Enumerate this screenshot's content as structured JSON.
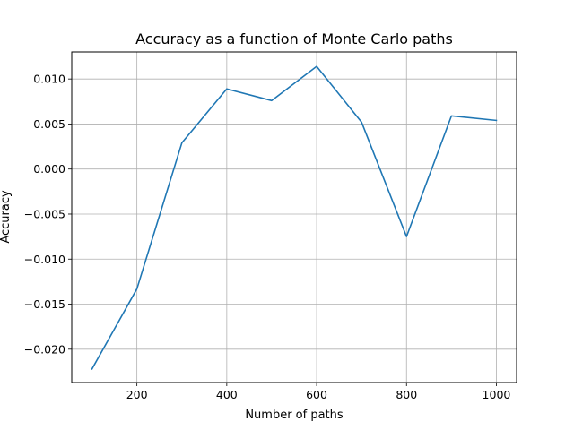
{
  "chart_data": {
    "type": "line",
    "title": "Accuracy as a function of Monte Carlo paths",
    "xlabel": "Number of paths",
    "ylabel": "Accuracy",
    "xlim": [
      55,
      1045
    ],
    "ylim": [
      -0.0237,
      0.013
    ],
    "xticks": [
      200,
      400,
      600,
      800,
      1000
    ],
    "xtick_labels": [
      "200",
      "400",
      "600",
      "800",
      "1000"
    ],
    "yticks": [
      -0.02,
      -0.015,
      -0.01,
      -0.005,
      0.0,
      0.005,
      0.01
    ],
    "ytick_labels": [
      "−0.020",
      "−0.015",
      "−0.010",
      "−0.005",
      "0.000",
      "0.005",
      "0.010"
    ],
    "grid": true,
    "line_color": "#1f77b4",
    "series": [
      {
        "x": [
          100,
          200,
          300,
          400,
          500,
          600,
          700,
          800,
          900,
          1000
        ],
        "values": [
          -0.0222,
          -0.0133,
          0.0029,
          0.0089,
          0.0076,
          0.0114,
          0.0052,
          -0.0075,
          0.0059,
          0.0054
        ]
      }
    ]
  }
}
